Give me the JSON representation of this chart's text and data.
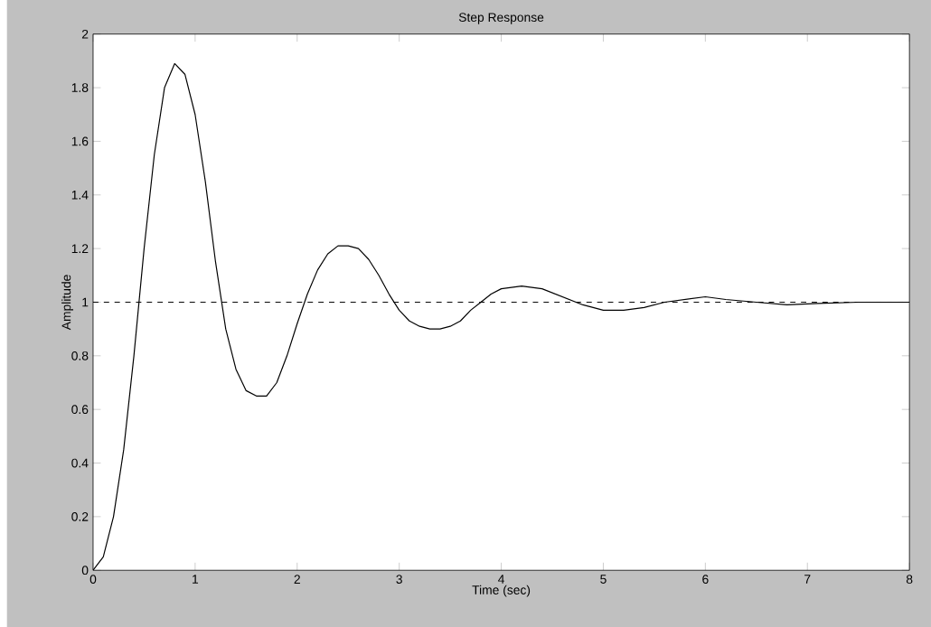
{
  "chart_data": {
    "type": "line",
    "title": "Step Response",
    "xlabel": "Time (sec)",
    "ylabel": "Amplitude",
    "x": [
      0,
      0.1,
      0.2,
      0.3,
      0.4,
      0.5,
      0.6,
      0.7,
      0.8,
      0.9,
      1.0,
      1.1,
      1.2,
      1.3,
      1.4,
      1.5,
      1.6,
      1.7,
      1.8,
      1.9,
      2.0,
      2.1,
      2.2,
      2.3,
      2.4,
      2.5,
      2.6,
      2.7,
      2.8,
      2.9,
      3.0,
      3.1,
      3.2,
      3.3,
      3.4,
      3.5,
      3.6,
      3.7,
      3.8,
      3.9,
      4.0,
      4.2,
      4.4,
      4.6,
      4.8,
      5.0,
      5.2,
      5.4,
      5.6,
      5.8,
      6.0,
      6.2,
      6.5,
      6.8,
      7.1,
      7.5,
      8.0
    ],
    "series": [
      {
        "color": "#000000",
        "values": [
          0,
          0.05,
          0.2,
          0.45,
          0.8,
          1.2,
          1.55,
          1.8,
          1.89,
          1.85,
          1.7,
          1.45,
          1.15,
          0.9,
          0.75,
          0.67,
          0.65,
          0.65,
          0.7,
          0.8,
          0.92,
          1.03,
          1.12,
          1.18,
          1.21,
          1.21,
          1.2,
          1.16,
          1.1,
          1.03,
          0.97,
          0.93,
          0.91,
          0.9,
          0.9,
          0.91,
          0.93,
          0.97,
          1.0,
          1.03,
          1.05,
          1.06,
          1.05,
          1.02,
          0.99,
          0.97,
          0.97,
          0.98,
          1.0,
          1.01,
          1.02,
          1.01,
          1.0,
          0.99,
          0.995,
          1.0,
          1.0
        ]
      }
    ],
    "xlim": [
      0,
      8
    ],
    "xticks": [
      0,
      1,
      2,
      3,
      4,
      5,
      6,
      7,
      8
    ],
    "ylim": [
      0,
      2
    ],
    "yticks": [
      0,
      0.2,
      0.4,
      0.6,
      0.8,
      1,
      1.2,
      1.4,
      1.6,
      1.8,
      2
    ],
    "ref_lines": [
      {
        "axis": "y",
        "value": 1,
        "color": "#000000",
        "line_style": "dashed"
      }
    ],
    "marker": "none",
    "line_style": "solid",
    "grid": false
  }
}
